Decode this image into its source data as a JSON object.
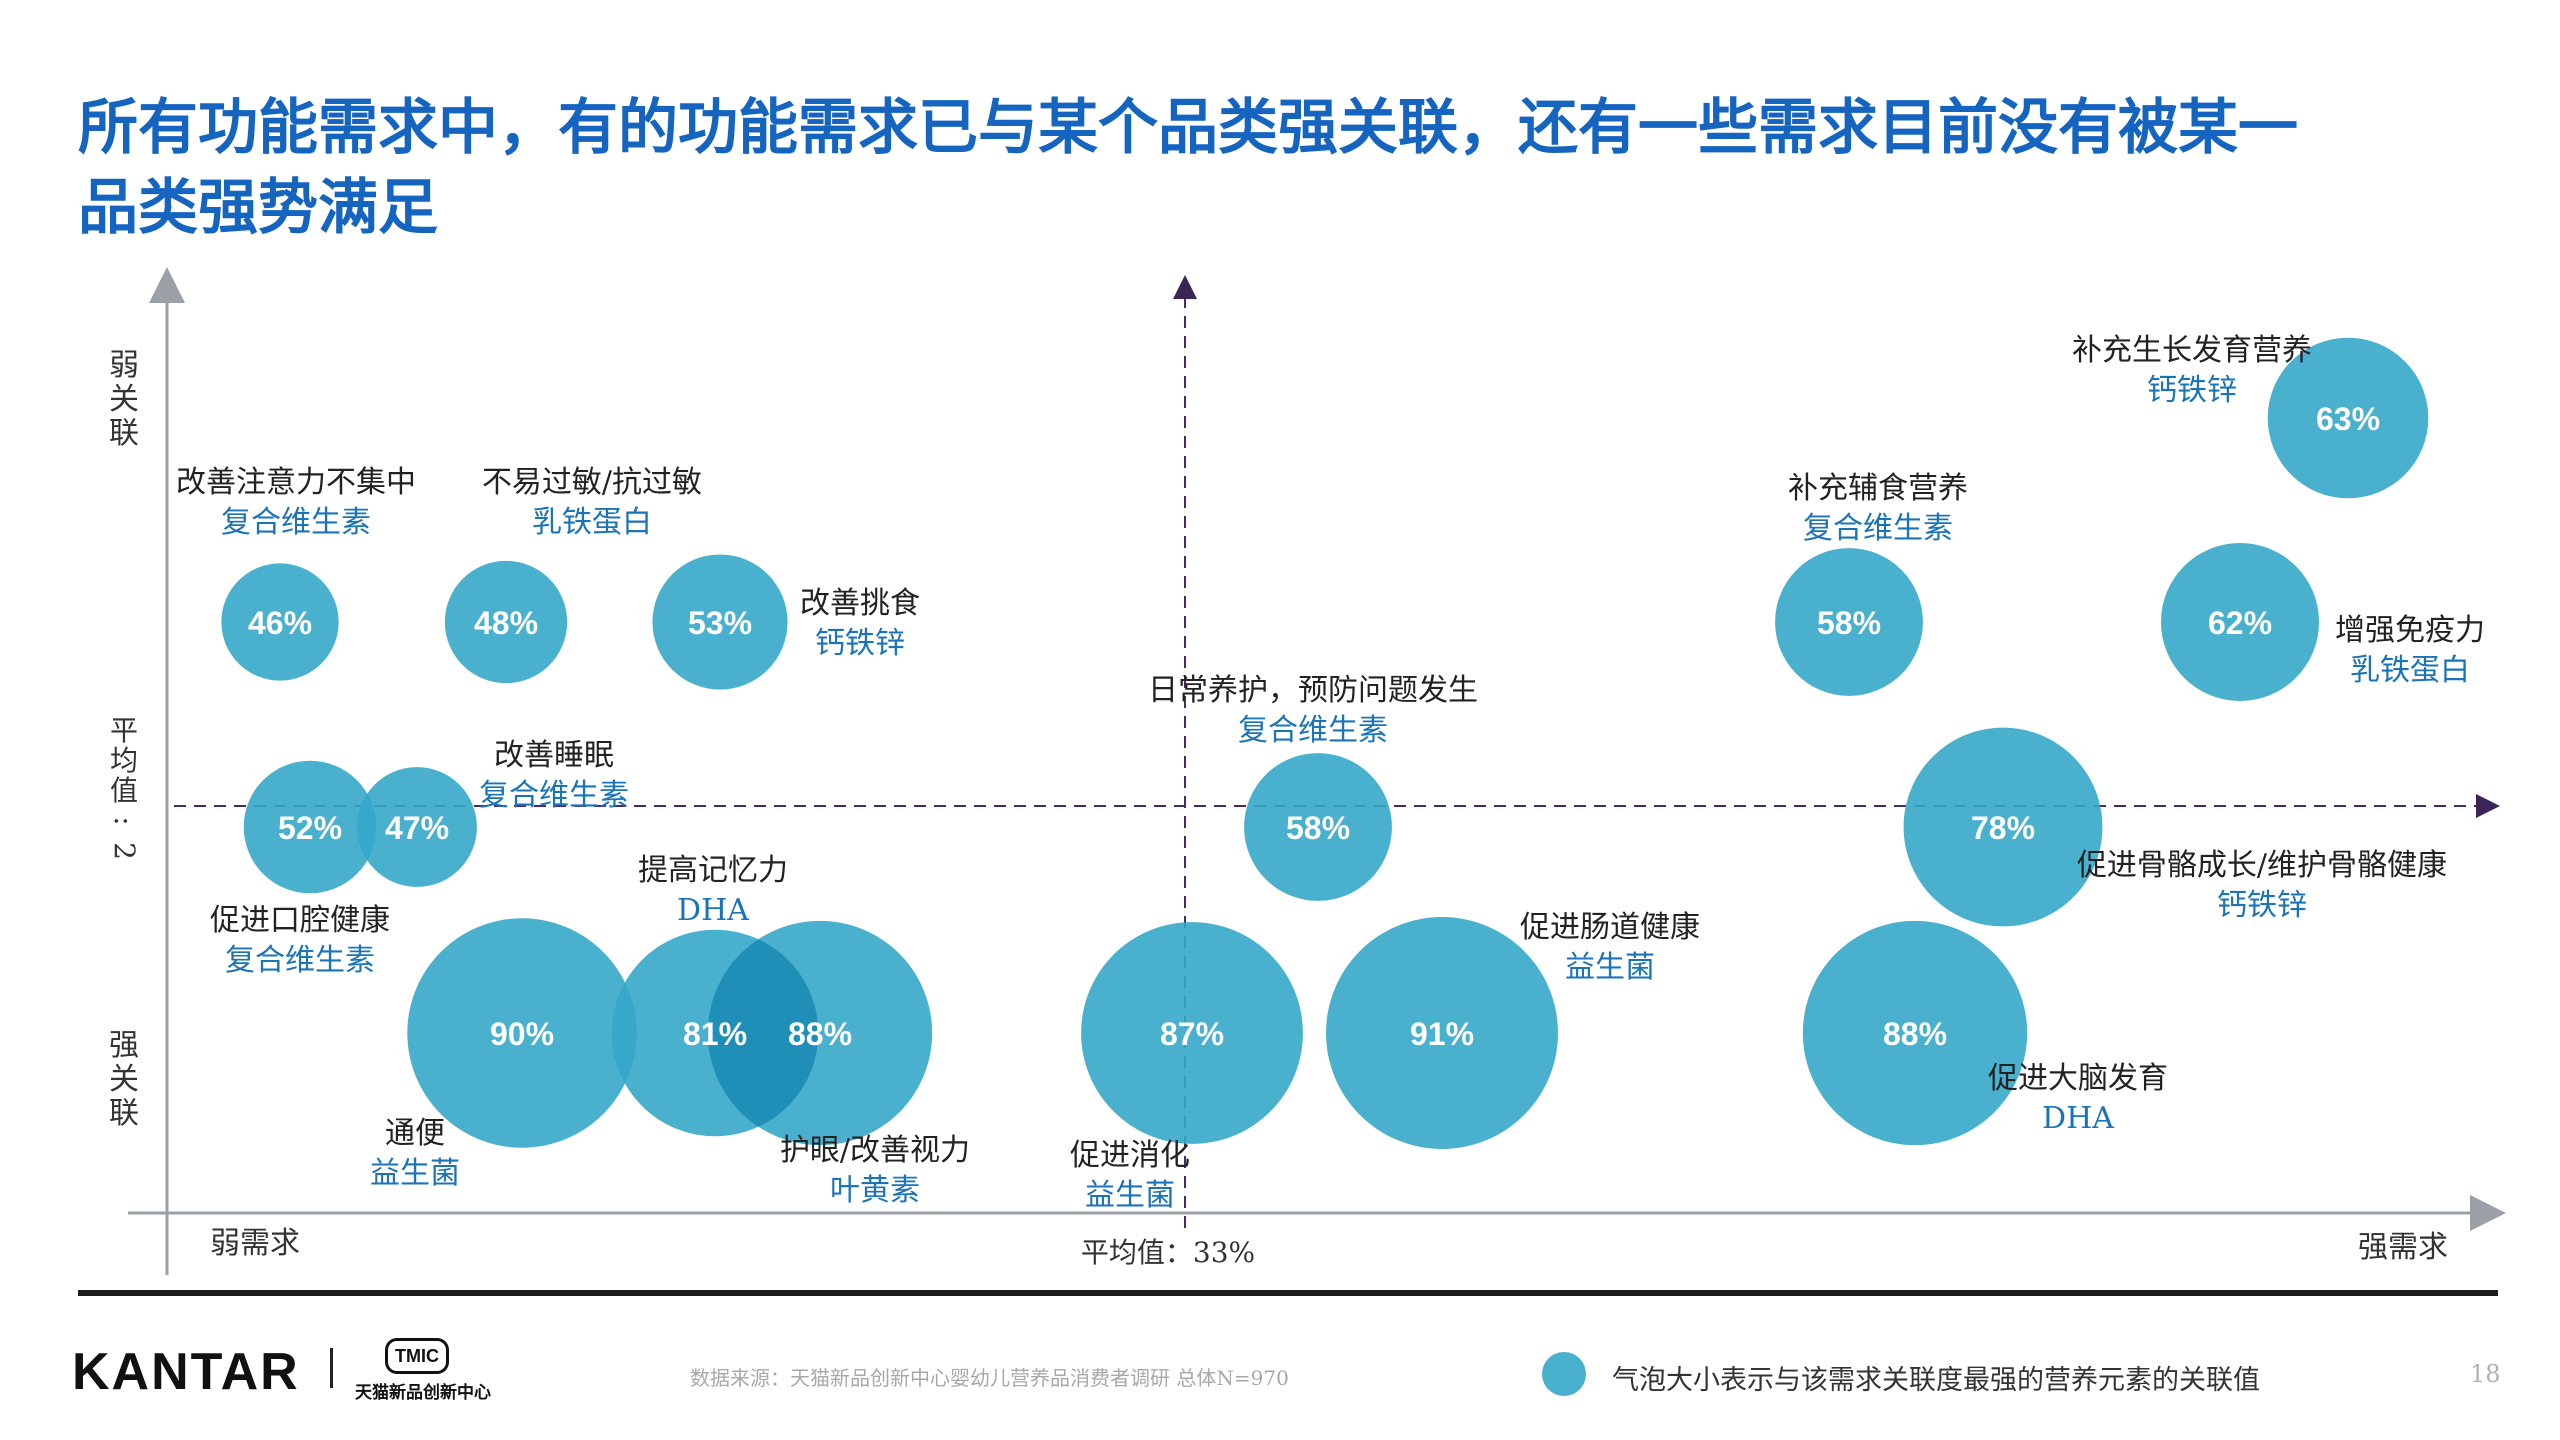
{
  "page": {
    "title_line1": "所有功能需求中，有的功能需求已与某个品类强关联，还有一些需求目前没有被某一",
    "title_line2": "品类强势满足",
    "source": "数据来源：天猫新品创新中心婴幼儿营养品消费者调研   总体N=970",
    "legend": "气泡大小表示与该需求关联度最强的营养元素的关联值",
    "page_number": "18",
    "logo": "KANTAR",
    "logo2_badge": "TMIC",
    "logo2_text": "天猫新品创新中心"
  },
  "colors": {
    "title": "#1565c0",
    "bubble": "#35a7c9",
    "bubble_overlap": "#1f8fb7",
    "nutrient_label": "#1b73b8",
    "avg_line": "#4a2a6a",
    "axis": "#9aa0a6"
  },
  "chart_data": {
    "type": "bubble",
    "y_axis": {
      "top_label": "弱关联",
      "bottom_label": "强关联",
      "avg_label": "平均值:2"
    },
    "x_axis": {
      "left_label": "弱需求",
      "right_label": "强需求",
      "avg_label": "平均值：33%"
    },
    "points": [
      {
        "need": "改善注意力不集中",
        "nutrient": "复合维生素",
        "value": "46%",
        "size": 46
      },
      {
        "need": "不易过敏/抗过敏",
        "nutrient": "乳铁蛋白",
        "value": "48%",
        "size": 48
      },
      {
        "need": "改善挑食",
        "nutrient": "钙铁锌",
        "value": "53%",
        "size": 53
      },
      {
        "need": "促进口腔健康",
        "nutrient": "复合维生素",
        "value": "52%",
        "size": 52
      },
      {
        "need": "改善睡眠",
        "nutrient": "复合维生素",
        "value": "47%",
        "size": 47
      },
      {
        "need": "通便",
        "nutrient": "益生菌",
        "value": "90%",
        "size": 90
      },
      {
        "need": "提高记忆力",
        "nutrient": "DHA",
        "value": "81%",
        "size": 81
      },
      {
        "need": "护眼/改善视力",
        "nutrient": "叶黄素",
        "value": "88%",
        "size": 88
      },
      {
        "need": "促进消化",
        "nutrient": "益生菌",
        "value": "87%",
        "size": 87
      },
      {
        "need": "日常养护，预防问题发生",
        "nutrient": "复合维生素",
        "value": "58%",
        "size": 58
      },
      {
        "need": "促进肠道健康",
        "nutrient": "益生菌",
        "value": "91%",
        "size": 91
      },
      {
        "need": "补充辅食营养",
        "nutrient": "复合维生素",
        "value": "58%",
        "size": 58
      },
      {
        "need": "促进大脑发育",
        "nutrient": "DHA",
        "value": "88%",
        "size": 88
      },
      {
        "need": "促进骨骼成长/维护骨骼健康",
        "nutrient": "钙铁锌",
        "value": "78%",
        "size": 78
      },
      {
        "need": "增强免疫力",
        "nutrient": "乳铁蛋白",
        "value": "62%",
        "size": 62
      },
      {
        "need": "补充生长发育营养",
        "nutrient": "钙铁锌",
        "value": "63%",
        "size": 63
      }
    ]
  }
}
